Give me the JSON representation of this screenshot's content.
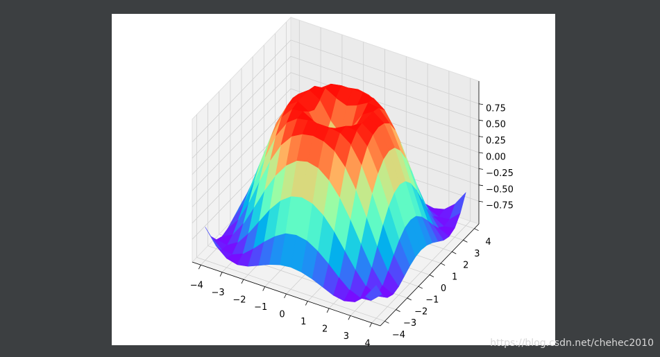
{
  "chart_data": {
    "type": "surface",
    "cmap": "rainbow",
    "grid": true,
    "x": [
      -4,
      -3.5,
      -3,
      -2.5,
      -2,
      -1.5,
      -1,
      -0.5,
      0,
      0.5,
      1,
      1.5,
      2,
      2.5,
      3,
      3.5,
      4
    ],
    "y": [
      -4,
      -3.5,
      -3,
      -2.5,
      -2,
      -1.5,
      -1,
      -0.5,
      0,
      0.5,
      1,
      1.5,
      2,
      2.5,
      3,
      3.5,
      4
    ],
    "z": [
      [
        -0.59,
        -0.82,
        -0.96,
        -1,
        -0.97,
        -0.9,
        -0.83,
        -0.78,
        -0.76,
        -0.78,
        -0.83,
        -0.9,
        -0.97,
        -1,
        -0.96,
        -0.82,
        -0.59
      ],
      [
        -0.82,
        -0.97,
        -0.99,
        -0.92,
        -0.78,
        -0.62,
        -0.48,
        -0.38,
        -0.35,
        -0.38,
        -0.48,
        -0.62,
        -0.78,
        -0.92,
        -0.99,
        -0.97,
        -0.82
      ],
      [
        -0.96,
        -0.99,
        -0.89,
        -0.69,
        -0.45,
        -0.21,
        -0.02,
        0.1,
        0.14,
        0.1,
        -0.02,
        -0.21,
        -0.45,
        -0.69,
        -0.89,
        -0.99,
        -0.96
      ],
      [
        -1,
        -0.92,
        -0.69,
        -0.38,
        -0.06,
        0.22,
        0.43,
        0.56,
        0.6,
        0.56,
        0.43,
        0.22,
        -0.06,
        -0.38,
        -0.69,
        -0.92,
        -1
      ],
      [
        -0.97,
        -0.78,
        -0.45,
        -0.06,
        0.31,
        0.6,
        0.79,
        0.88,
        0.91,
        0.88,
        0.79,
        0.6,
        0.31,
        -0.06,
        -0.45,
        -0.78,
        -0.97
      ],
      [
        -0.9,
        -0.62,
        -0.21,
        0.22,
        0.6,
        0.85,
        0.97,
        1,
        1,
        1,
        0.97,
        0.85,
        0.6,
        0.22,
        -0.21,
        -0.62,
        -0.9
      ],
      [
        -0.83,
        -0.48,
        -0.02,
        0.43,
        0.79,
        0.97,
        0.99,
        0.9,
        0.84,
        0.9,
        0.99,
        0.97,
        0.79,
        0.43,
        -0.02,
        -0.48,
        -0.83
      ],
      [
        -0.78,
        -0.38,
        0.1,
        0.56,
        0.88,
        1,
        0.9,
        0.65,
        0.48,
        0.65,
        0.9,
        1,
        0.88,
        0.56,
        0.1,
        -0.38,
        -0.78
      ],
      [
        -0.76,
        -0.35,
        0.14,
        0.6,
        0.91,
        1,
        0.84,
        0.48,
        0,
        0.48,
        0.84,
        1,
        0.91,
        0.6,
        0.14,
        -0.35,
        -0.76
      ],
      [
        -0.78,
        -0.38,
        0.1,
        0.56,
        0.88,
        1,
        0.9,
        0.65,
        0.48,
        0.65,
        0.9,
        1,
        0.88,
        0.56,
        0.1,
        -0.38,
        -0.78
      ],
      [
        -0.83,
        -0.48,
        -0.02,
        0.43,
        0.79,
        0.97,
        0.99,
        0.9,
        0.84,
        0.9,
        0.99,
        0.97,
        0.79,
        0.43,
        -0.02,
        -0.48,
        -0.83
      ],
      [
        -0.9,
        -0.62,
        -0.21,
        0.22,
        0.6,
        0.85,
        0.97,
        1,
        1,
        1,
        0.97,
        0.85,
        0.6,
        0.22,
        -0.21,
        -0.62,
        -0.9
      ],
      [
        -0.97,
        -0.78,
        -0.45,
        -0.06,
        0.31,
        0.6,
        0.79,
        0.88,
        0.91,
        0.88,
        0.79,
        0.6,
        0.31,
        -0.06,
        -0.45,
        -0.78,
        -0.97
      ],
      [
        -1,
        -0.92,
        -0.69,
        -0.38,
        -0.06,
        0.22,
        0.43,
        0.56,
        0.6,
        0.56,
        0.43,
        0.22,
        -0.06,
        -0.38,
        -0.69,
        -0.92,
        -1
      ],
      [
        -0.96,
        -0.99,
        -0.89,
        -0.69,
        -0.45,
        -0.21,
        -0.02,
        0.1,
        0.14,
        0.1,
        -0.02,
        -0.21,
        -0.45,
        -0.69,
        -0.89,
        -0.99,
        -0.96
      ],
      [
        -0.82,
        -0.97,
        -0.99,
        -0.92,
        -0.78,
        -0.62,
        -0.48,
        -0.38,
        -0.35,
        -0.38,
        -0.48,
        -0.62,
        -0.78,
        -0.92,
        -0.99,
        -0.97,
        -0.82
      ],
      [
        -0.59,
        -0.82,
        -0.96,
        -1,
        -0.97,
        -0.9,
        -0.83,
        -0.78,
        -0.76,
        -0.78,
        -0.83,
        -0.9,
        -0.97,
        -1,
        -0.96,
        -0.82,
        -0.59
      ]
    ],
    "xlim": [
      -4.4,
      4.4
    ],
    "ylim": [
      -4.4,
      4.4
    ],
    "zlim": [
      -1.1,
      1.1
    ],
    "xticks": [
      {
        "value": -4,
        "label": "−4"
      },
      {
        "value": -3,
        "label": "−3"
      },
      {
        "value": -2,
        "label": "−2"
      },
      {
        "value": -1,
        "label": "−1"
      },
      0,
      1,
      2,
      3,
      4
    ],
    "yticks": [
      {
        "value": -4,
        "label": "−4"
      },
      {
        "value": -3,
        "label": "−3"
      },
      {
        "value": -2,
        "label": "−2"
      },
      {
        "value": -1,
        "label": "−1"
      },
      0,
      1,
      2,
      3,
      4
    ],
    "zticks": [
      {
        "value": -0.75,
        "label": "−0.75"
      },
      {
        "value": -0.5,
        "label": "−0.50"
      },
      {
        "value": -0.25,
        "label": "−0.25"
      },
      {
        "value": 0,
        "label": "0.00"
      },
      0.25,
      {
        "value": 0.5,
        "label": "0.50"
      },
      0.75
    ],
    "watermark": "https://blog.csdn.net/chehec2010"
  }
}
